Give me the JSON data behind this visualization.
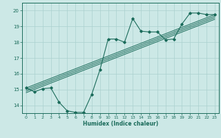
{
  "xlabel": "Humidex (Indice chaleur)",
  "xlim": [
    -0.5,
    23.5
  ],
  "ylim": [
    13.5,
    20.5
  ],
  "yticks": [
    14,
    15,
    16,
    17,
    18,
    19,
    20
  ],
  "xticks": [
    0,
    1,
    2,
    3,
    4,
    5,
    6,
    7,
    8,
    9,
    10,
    11,
    12,
    13,
    14,
    15,
    16,
    17,
    18,
    19,
    20,
    21,
    22,
    23
  ],
  "bg_color": "#cce8e6",
  "grid_color": "#aad0ce",
  "line_color": "#1a6b5a",
  "data_x": [
    0,
    1,
    2,
    3,
    4,
    5,
    6,
    7,
    8,
    9,
    10,
    11,
    12,
    13,
    14,
    15,
    16,
    17,
    18,
    19,
    20,
    21,
    22,
    23
  ],
  "data_y": [
    15.1,
    14.85,
    15.05,
    15.1,
    14.2,
    13.65,
    13.55,
    13.55,
    14.7,
    16.25,
    18.2,
    18.2,
    18.0,
    19.5,
    18.7,
    18.65,
    18.65,
    18.15,
    18.2,
    19.15,
    19.85,
    19.85,
    19.75,
    19.75
  ],
  "reg_lines": [
    {
      "x0": 0,
      "y0": 15.1,
      "x1": 23,
      "y1": 19.75
    },
    {
      "x0": 0,
      "y0": 15.0,
      "x1": 23,
      "y1": 19.65
    },
    {
      "x0": 0,
      "y0": 14.9,
      "x1": 23,
      "y1": 19.55
    },
    {
      "x0": 0,
      "y0": 14.8,
      "x1": 23,
      "y1": 19.45
    }
  ]
}
